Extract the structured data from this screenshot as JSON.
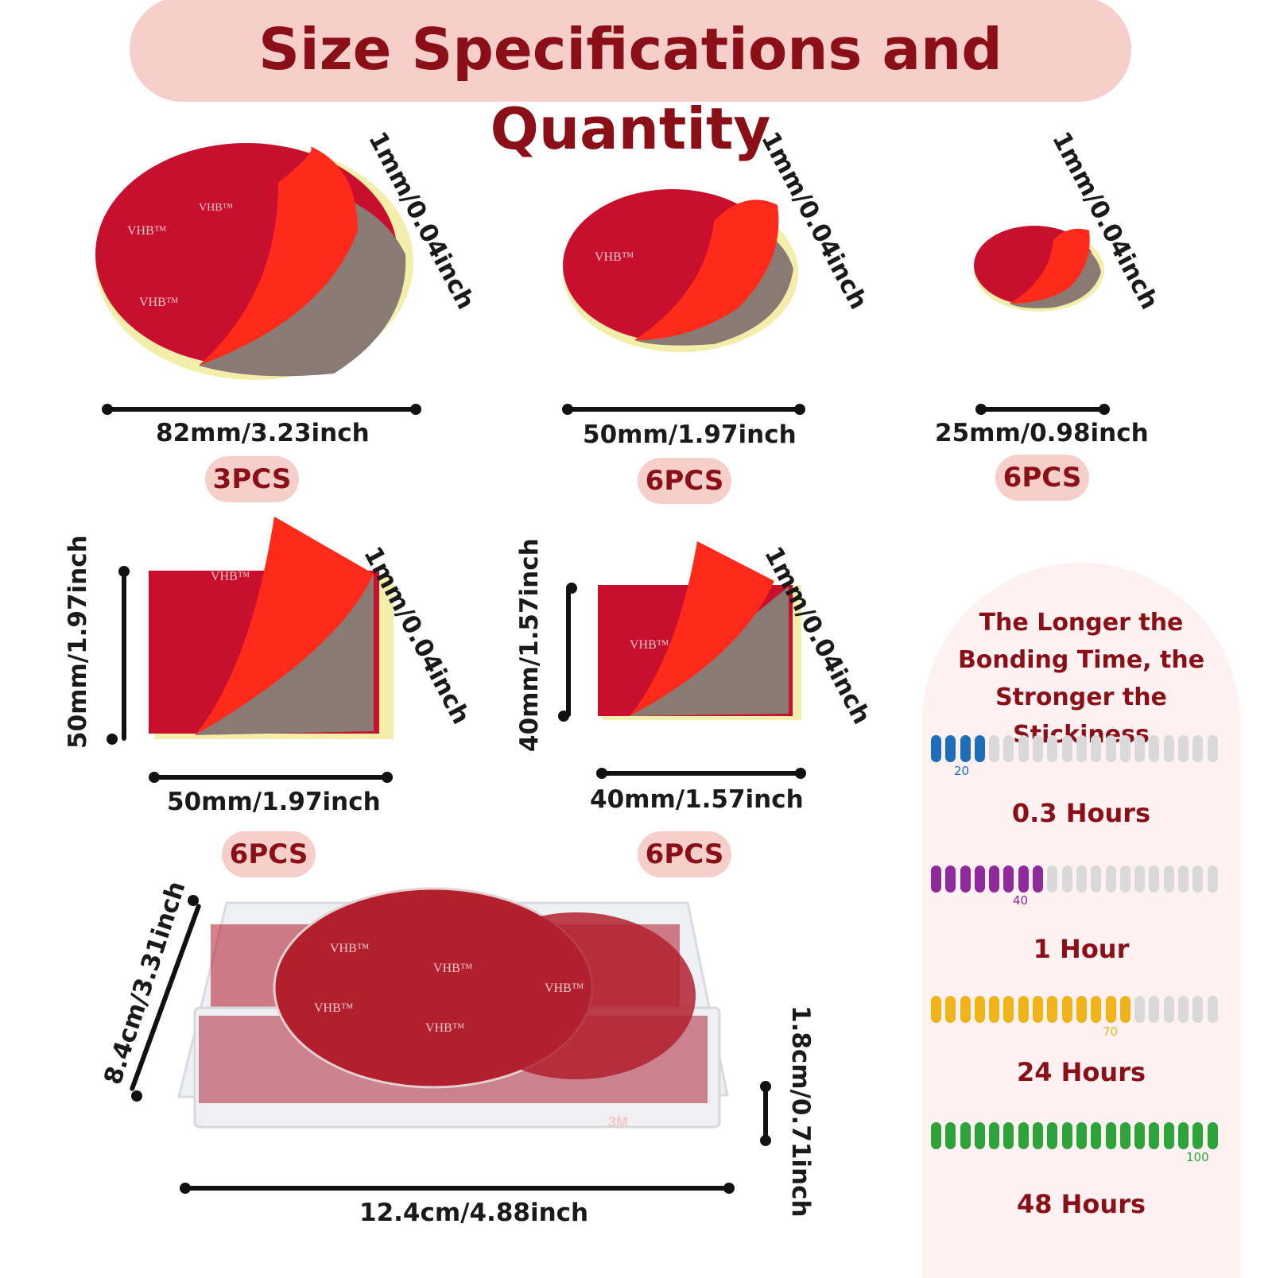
{
  "title": "Size Specifications and Quantity",
  "items": [
    {
      "thickness": "1mm/0.04inch",
      "width": "82mm/3.23inch",
      "qty": "3PCS"
    },
    {
      "thickness": "1mm/0.04inch",
      "width": "50mm/1.97inch",
      "qty": "6PCS"
    },
    {
      "thickness": "1mm/0.04inch",
      "width": "25mm/0.98inch",
      "qty": "6PCS"
    },
    {
      "thickness": "1mm/0.04inch",
      "width": "50mm/1.97inch",
      "height": "50mm/1.97inch",
      "qty": "6PCS"
    },
    {
      "thickness": "1mm/0.04inch",
      "width": "40mm/1.57inch",
      "height": "40mm/1.57inch",
      "qty": "6PCS"
    }
  ],
  "box": {
    "width": "12.4cm/4.88inch",
    "depth": "8.4cm/3.31inch",
    "height": "1.8cm/0.71inch"
  },
  "pad_brand": "VHB™",
  "box_brand": "3M",
  "panel": {
    "title": "The Longer the Bonding Time, the Stronger the Stickiness",
    "levels": [
      {
        "value": 20,
        "label": "0.3 Hours",
        "color": "#1f6fb8",
        "tick": "20"
      },
      {
        "value": 40,
        "label": "1 Hour",
        "color": "#8e2a9a",
        "tick": "40"
      },
      {
        "value": 70,
        "label": "24 Hours",
        "color": "#f0b41a",
        "tick": "70"
      },
      {
        "value": 100,
        "label": "48 Hours",
        "color": "#2da33a",
        "tick": "100"
      }
    ]
  },
  "colors": {
    "accent": "#8b0f17",
    "pill": "#f6cfcb",
    "pad_red": "#c8102e",
    "liner": "#ff2a1a",
    "foam": "#8a7a74",
    "backing": "#f3eeaa"
  }
}
